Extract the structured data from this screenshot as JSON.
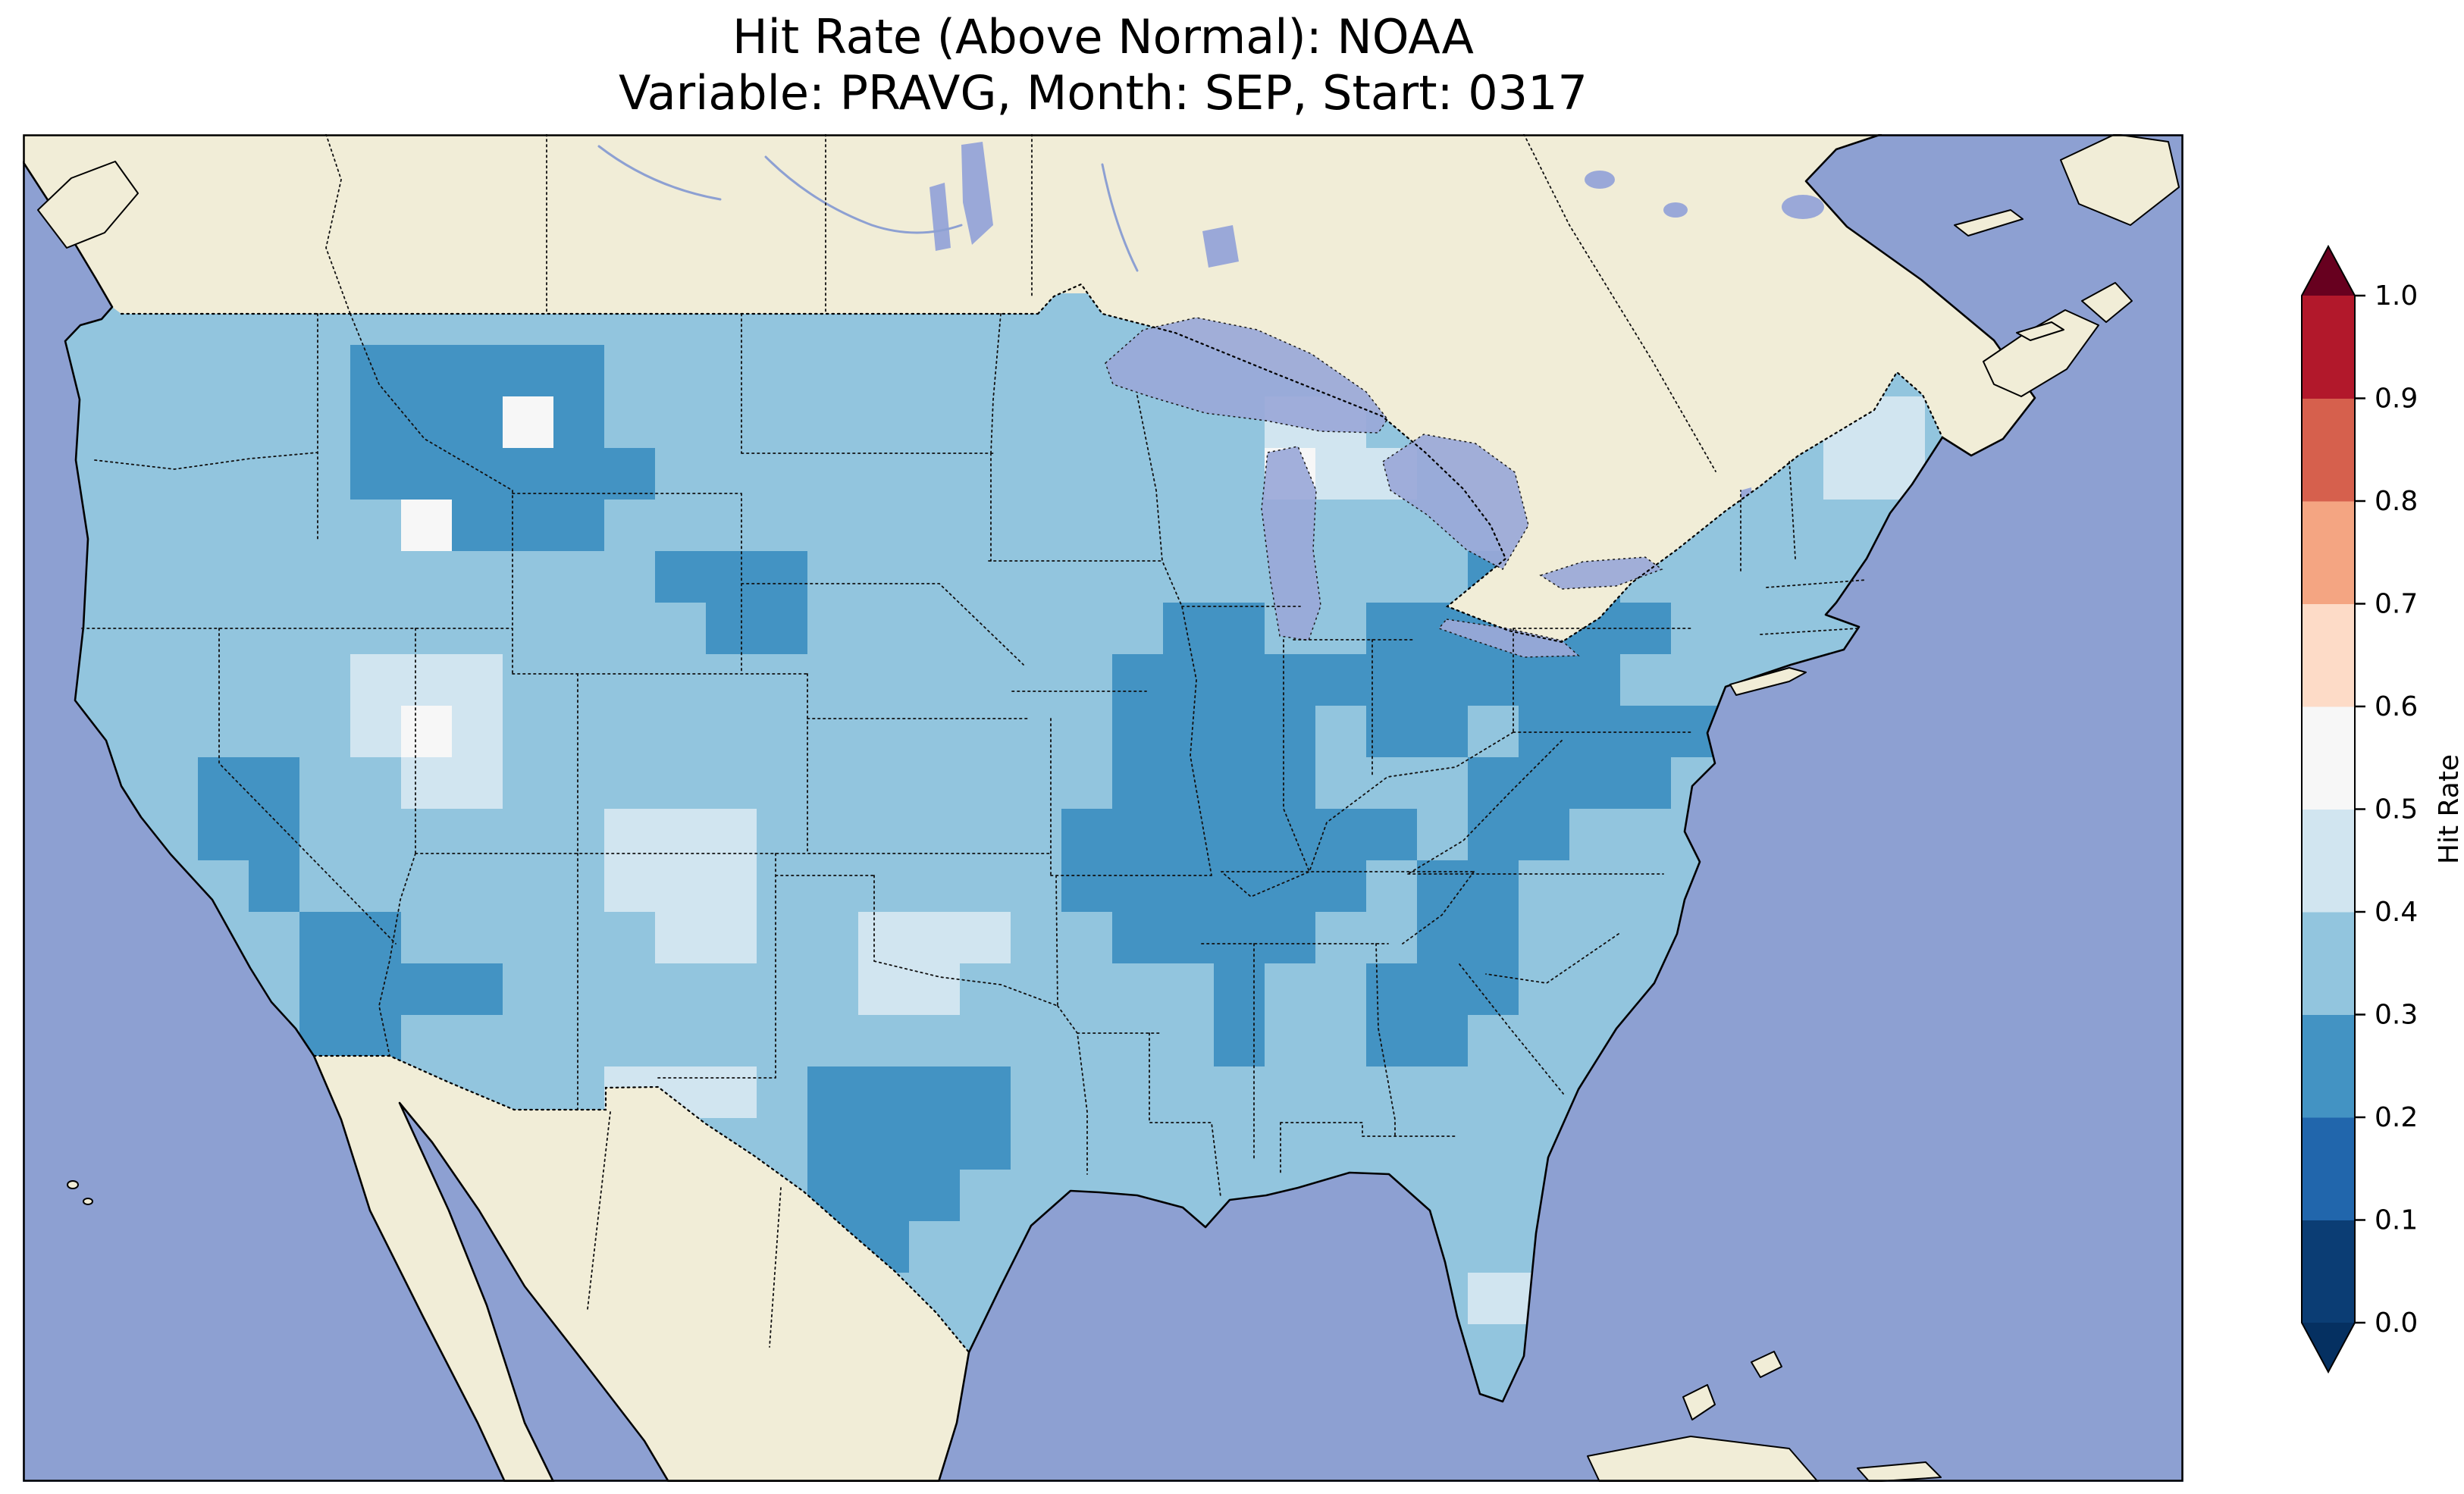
{
  "title": {
    "line1": "Hit Rate (Above Normal): NOAA",
    "line2": "Variable: PRAVG, Month: SEP, Start: 0317"
  },
  "colorbar": {
    "label": "Hit Rate",
    "ticks_bottom_to_top": [
      "0.0",
      "0.1",
      "0.2",
      "0.3",
      "0.4",
      "0.5",
      "0.6",
      "0.7",
      "0.8",
      "0.9",
      "1.0"
    ],
    "extend": "both",
    "under_color": "#053061",
    "over_color": "#67001f",
    "bins_bottom_to_top": [
      {
        "range": [
          0.0,
          0.1
        ],
        "color": "#0b3d74"
      },
      {
        "range": [
          0.1,
          0.2
        ],
        "color": "#2166ac"
      },
      {
        "range": [
          0.2,
          0.3
        ],
        "color": "#4393c3"
      },
      {
        "range": [
          0.3,
          0.4
        ],
        "color": "#92c5de"
      },
      {
        "range": [
          0.4,
          0.5
        ],
        "color": "#d1e5f0"
      },
      {
        "range": [
          0.5,
          0.6
        ],
        "color": "#f7f7f7"
      },
      {
        "range": [
          0.6,
          0.7
        ],
        "color": "#fddbc7"
      },
      {
        "range": [
          0.7,
          0.8
        ],
        "color": "#f4a582"
      },
      {
        "range": [
          0.8,
          0.9
        ],
        "color": "#d6604d"
      },
      {
        "range": [
          0.9,
          1.0
        ],
        "color": "#b2182b"
      }
    ]
  },
  "colors": {
    "ocean": "#8da0d2",
    "land": "#f1edd7",
    "lake": "#9aa8d8",
    "text": "#000000",
    "frame": "#000000"
  },
  "chart_data": {
    "type": "heatmap",
    "title": "Hit Rate (Above Normal): NOAA",
    "subtitle": "Variable: PRAVG, Month: SEP, Start: 0317",
    "metric": "Hit Rate (Above Normal)",
    "source": "NOAA",
    "variable": "PRAVG",
    "month": "SEP",
    "start": "0317",
    "colormap": "RdBu_r",
    "vmin": 0.0,
    "vmax": 1.0,
    "bin_width": 0.1,
    "legend_label": "Hit Rate",
    "region": "Contiguous United States",
    "value_summary": {
      "dominant_bin": [
        0.3,
        0.4
      ],
      "dark_patch_bin": [
        0.2,
        0.3
      ],
      "pale_patch_bin": [
        0.4,
        0.5
      ],
      "lightest_bin": [
        0.5,
        0.6
      ],
      "note": "All values over CONUS fall between 0.2 and 0.6; no values above 0.6 (no red bins) appear on the map. Darker-blue (0.2-0.3) patches: N Rockies (MT/ID), E Wyoming, Sierra/central CA, S California-Arizona, central Texas, Iowa-Illinois-Missouri, Missouri-Kentucky-Tennessee, Indiana-Ohio-Pennsylvania-W New York, Mid-Atlantic, Georgia-South Carolina. Pale (0.4-0.6) patches: Nevada-Utah, New Mexico, Oklahoma-Texas panhandle, upper Michigan, northern Maine, central Florida."
    },
    "grid": {
      "description": "Approximate 38x22 coarse grid of binned hit-rate values over the map area (clipped to the US). Symbols: 2=0.2-0.3, 3=0.3-0.4, 4=0.4-0.5, 5=0.5-0.6.",
      "cols": 38,
      "rows": 22,
      "value_bins": {
        "2": 0.25,
        "3": 0.35,
        "4": 0.45,
        "5": 0.55
      },
      "colors": {
        "2": "#4393c3",
        "3": "#92c5de",
        "4": "#d1e5f0",
        "5": "#f7f7f7"
      },
      "rows_data": [
        "33333333333333333333333333333333333333",
        "33333322222333333333333333333333333333",
        "33333322252333333333333344333333333443",
        "33333322222233333333333354433333333443",
        "33333335222333333333333333333333333333",
        "33333333333322233333333333332223333333",
        "33333333333332233333332233222222333333",
        "33333344433333333333322222222223333333",
        "33333345433333333333322223223222233333",
        "33322334433333333333322223332222333333",
        "33322333333444333333222222232233333333",
        "33332333333444333333222222322333333333",
        "33333223333344334443322223322333333333",
        "33333222233333334433333233222333333333",
        "33333223333333333333333233223333333333",
        "33333333333444322223333333333333333333",
        "33333333333333322223333333333333333333",
        "33333333333333322233333333333333333333",
        "33333333333333322333333333333333333333",
        "33333333333333333333333333334433333333",
        "33333333333333333333333333333333333333",
        "33333333333333333333333333333333333333"
      ]
    }
  }
}
